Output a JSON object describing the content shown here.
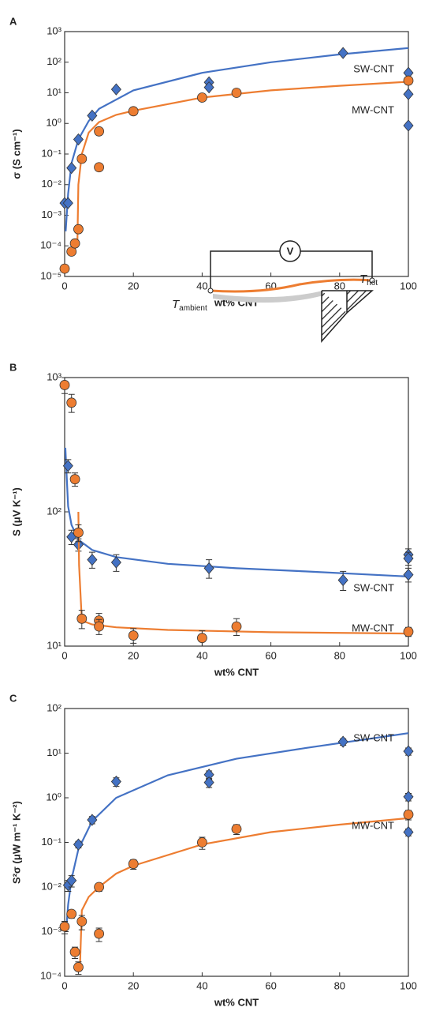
{
  "chart_data": [
    {
      "type": "scatter",
      "panel": "A",
      "y_label": "σ (S cm⁻¹)",
      "x_label": "wt% CNT",
      "log_y": true,
      "xlim": [
        0,
        100
      ],
      "xticks": [
        0,
        20,
        40,
        60,
        80,
        100
      ],
      "ylim": [
        1e-05,
        1000
      ],
      "yticks": [
        {
          "value": 1e-05,
          "label": "10⁻⁵"
        },
        {
          "value": 0.0001,
          "label": "10⁻⁴"
        },
        {
          "value": 0.001,
          "label": "10⁻³"
        },
        {
          "value": 0.01,
          "label": "10⁻²"
        },
        {
          "value": 0.1,
          "label": "10⁻¹"
        },
        {
          "value": 1,
          "label": "10⁰"
        },
        {
          "value": 10,
          "label": "10¹"
        },
        {
          "value": 100,
          "label": "10²"
        },
        {
          "value": 1000,
          "label": "10³"
        }
      ],
      "series": [
        {
          "name": "SW-CNT",
          "color": "#4472c4",
          "marker": "diamond",
          "x": [
            0,
            1,
            2,
            4,
            8,
            15,
            42,
            42,
            81,
            100,
            100,
            100
          ],
          "values": [
            0.0025,
            0.0025,
            0.035,
            0.3,
            1.8,
            13,
            22,
            15,
            200,
            45,
            9,
            0.85
          ],
          "fit": {
            "x": [
              0.3,
              1,
              2,
              4,
              7,
              10,
              20,
              40,
              60,
              80,
              100
            ],
            "values": [
              0.0003,
              0.005,
              0.05,
              0.3,
              1.2,
              3,
              12,
              45,
              100,
              180,
              290
            ]
          }
        },
        {
          "name": "MW-CNT",
          "color": "#ed7d31",
          "marker": "circle",
          "x": [
            0,
            2,
            3,
            4,
            5,
            10,
            10,
            20,
            40,
            50,
            100
          ],
          "values": [
            1.8e-05,
            6.5e-05,
            0.00012,
            0.00035,
            0.07,
            0.55,
            0.037,
            2.5,
            7,
            10,
            25
          ],
          "fit": {
            "x": [
              3.7,
              4,
              5,
              7,
              10,
              15,
              20,
              40,
              60,
              80,
              100
            ],
            "values": [
              0.0001,
              0.01,
              0.1,
              0.5,
              1.1,
              1.9,
              2.6,
              7,
              12,
              17,
              23
            ]
          }
        }
      ]
    },
    {
      "type": "scatter",
      "panel": "B",
      "y_label": "S (μV K⁻¹)",
      "x_label": "wt% CNT",
      "log_y": true,
      "xlim": [
        0,
        100
      ],
      "xticks": [
        0,
        20,
        40,
        60,
        80,
        100
      ],
      "ylim": [
        10,
        1000
      ],
      "yticks": [
        {
          "value": 10,
          "label": "10¹"
        },
        {
          "value": 100,
          "label": "10²"
        },
        {
          "value": 1000,
          "label": "10³"
        }
      ],
      "inset": {
        "voltmeter": "V",
        "t_ambient": "T",
        "t_ambient_sub": "ambient",
        "t_hot": "T",
        "t_hot_sub": "hot"
      },
      "series": [
        {
          "name": "SW-CNT",
          "color": "#4472c4",
          "marker": "diamond",
          "x": [
            1,
            2,
            4,
            8,
            15,
            42,
            81,
            100,
            100,
            100
          ],
          "values": [
            220,
            65,
            57,
            44,
            42,
            38,
            31,
            48,
            45,
            34
          ],
          "errors": [
            25,
            8,
            6,
            6,
            6,
            6,
            5,
            5,
            5,
            4
          ],
          "fit": {
            "x": [
              0.2,
              1,
              2,
              4,
              8,
              15,
              30,
              50,
              70,
              100
            ],
            "values": [
              300,
              110,
              80,
              62,
              52,
              46,
              41,
              38,
              36,
              33
            ]
          }
        },
        {
          "name": "MW-CNT",
          "color": "#ed7d31",
          "marker": "circle",
          "x": [
            0,
            2,
            3,
            4,
            5,
            10,
            10,
            20,
            40,
            50,
            100
          ],
          "values": [
            880,
            650,
            175,
            70,
            16,
            15.5,
            14,
            12,
            11.5,
            14,
            12.8
          ],
          "errors": [
            120,
            100,
            20,
            10,
            2.5,
            2,
            1.8,
            1.5,
            1.5,
            2,
            1
          ],
          "fit": {
            "x": [
              4,
              4.2,
              5,
              8,
              15,
              30,
              60,
              100
            ],
            "values": [
              100,
              40,
              15.5,
              14.5,
              13.8,
              13.2,
              12.7,
              12.4
            ]
          }
        }
      ]
    },
    {
      "type": "scatter",
      "panel": "C",
      "y_label": "S²σ (μW m⁻¹ K⁻²)",
      "x_label": "wt% CNT",
      "log_y": true,
      "xlim": [
        0,
        100
      ],
      "xticks": [
        0,
        20,
        40,
        60,
        80,
        100
      ],
      "ylim": [
        0.0001,
        100
      ],
      "yticks": [
        {
          "value": 0.0001,
          "label": "10⁻⁴"
        },
        {
          "value": 0.001,
          "label": "10⁻³"
        },
        {
          "value": 0.01,
          "label": "10⁻²"
        },
        {
          "value": 0.1,
          "label": "10⁻¹"
        },
        {
          "value": 1,
          "label": "10⁰"
        },
        {
          "value": 10,
          "label": "10¹"
        },
        {
          "value": 100,
          "label": "10²"
        }
      ],
      "series": [
        {
          "name": "SW-CNT",
          "color": "#4472c4",
          "marker": "diamond",
          "x": [
            1,
            2,
            4,
            8,
            15,
            42,
            42,
            81,
            100,
            100,
            100
          ],
          "values": [
            0.011,
            0.014,
            0.09,
            0.32,
            2.3,
            3.3,
            2.2,
            18,
            11,
            1.05,
            0.17
          ],
          "errors": [
            0.003,
            0.004,
            0.015,
            0.06,
            0.5,
            0.7,
            0.5,
            3,
            2,
            0.2,
            0.03
          ],
          "fit": {
            "x": [
              0.5,
              1,
              2,
              4,
              8,
              15,
              30,
              50,
              70,
              100
            ],
            "values": [
              0.0012,
              0.004,
              0.015,
              0.07,
              0.3,
              1,
              3.2,
              7.5,
              13,
              28
            ]
          }
        },
        {
          "name": "MW-CNT",
          "color": "#ed7d31",
          "marker": "circle",
          "x": [
            0,
            2,
            3,
            4,
            5,
            10,
            10,
            20,
            40,
            50,
            100
          ],
          "values": [
            0.0013,
            0.0025,
            0.00035,
            0.00016,
            0.0017,
            0.01,
            0.0009,
            0.033,
            0.1,
            0.2,
            0.42
          ],
          "errors": [
            0.0004,
            0.0005,
            0.0001,
            5e-05,
            0.0006,
            0.002,
            0.0003,
            0.008,
            0.03,
            0.05,
            0.1
          ],
          "fit": {
            "x": [
              4.5,
              5,
              7,
              10,
              15,
              20,
              40,
              60,
              80,
              100
            ],
            "values": [
              0.0002,
              0.003,
              0.006,
              0.01,
              0.02,
              0.03,
              0.09,
              0.17,
              0.25,
              0.35
            ]
          }
        }
      ]
    }
  ]
}
